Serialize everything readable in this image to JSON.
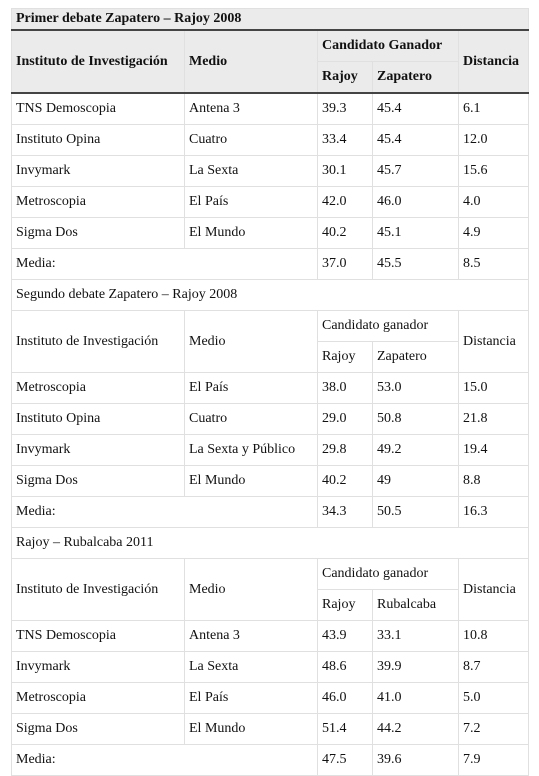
{
  "sections": [
    {
      "title": "Primer debate Zapatero – Rajoy 2008",
      "header": {
        "institute": "Instituto de Investigación",
        "medium": "Medio",
        "winner": "Candidato Ganador",
        "candidates": [
          "Rajoy",
          "Zapatero"
        ],
        "distance": "Distancia"
      },
      "rows": [
        [
          "TNS Demoscopia",
          "Antena 3",
          "39.3",
          "45.4",
          "6.1"
        ],
        [
          "Instituto Opina",
          "Cuatro",
          "33.4",
          "45.4",
          "12.0"
        ],
        [
          "Invymark",
          "La Sexta",
          "30.1",
          "45.7",
          "15.6"
        ],
        [
          "Metroscopia",
          "El País",
          "42.0",
          "46.0",
          "4.0"
        ],
        [
          "Sigma Dos",
          "El Mundo",
          "40.2",
          "45.1",
          "4.9"
        ]
      ],
      "mean": {
        "label": "Media:",
        "values": [
          "37.0",
          "45.5",
          "8.5"
        ]
      }
    },
    {
      "title": "Segundo debate Zapatero – Rajoy 2008",
      "header": {
        "institute": "Instituto de Investigación",
        "medium": "Medio",
        "winner": "Candidato ganador",
        "candidates": [
          "Rajoy",
          "Zapatero"
        ],
        "distance": "Distancia"
      },
      "rows": [
        [
          "Metroscopia",
          "El País",
          "38.0",
          "53.0",
          "15.0"
        ],
        [
          "Instituto Opina",
          "Cuatro",
          "29.0",
          "50.8",
          "21.8"
        ],
        [
          "Invymark",
          "La Sexta y Público",
          "29.8",
          "49.2",
          "19.4"
        ],
        [
          "Sigma Dos",
          "El Mundo",
          "40.2",
          "49",
          "8.8"
        ]
      ],
      "mean": {
        "label": "Media:",
        "values": [
          "34.3",
          "50.5",
          "16.3"
        ]
      }
    },
    {
      "title": "Rajoy – Rubalcaba 2011",
      "header": {
        "institute": "Instituto de Investigación",
        "medium": "Medio",
        "winner": "Candidato ganador",
        "candidates": [
          "Rajoy",
          "Rubalcaba"
        ],
        "distance": "Distancia"
      },
      "rows": [
        [
          "TNS Demoscopia",
          "Antena 3",
          "43.9",
          "33.1",
          "10.8"
        ],
        [
          "Invymark",
          "La Sexta",
          "48.6",
          "39.9",
          "8.7"
        ],
        [
          "Metroscopia",
          "El País",
          "46.0",
          "41.0",
          "5.0"
        ],
        [
          "Sigma Dos",
          "El Mundo",
          "51.4",
          "44.2",
          "7.2"
        ]
      ],
      "mean": {
        "label": "Media:",
        "values": [
          "47.5",
          "39.6",
          "7.9"
        ]
      }
    }
  ]
}
